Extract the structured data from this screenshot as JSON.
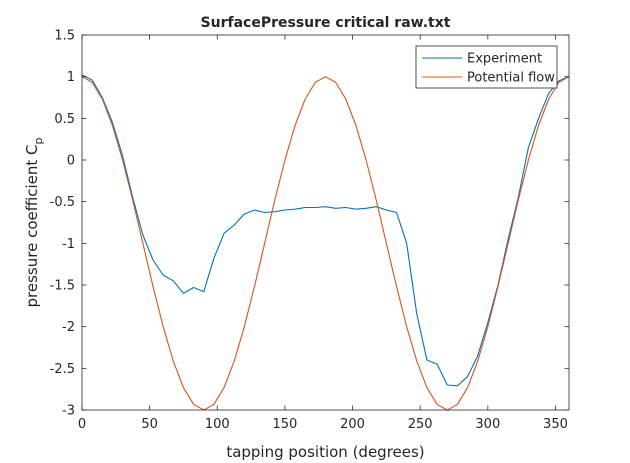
{
  "chart_data": {
    "type": "line",
    "title": "SurfacePressure critical raw.txt",
    "xlabel": "tapping position (degrees)",
    "ylabel": "pressure coefficient C",
    "ylabel_subscript": "p",
    "xlim": [
      0,
      360
    ],
    "ylim": [
      -3,
      1.5
    ],
    "xticks": [
      0,
      50,
      100,
      150,
      200,
      250,
      300,
      350
    ],
    "yticks": [
      1.5,
      1,
      0.5,
      0,
      -0.5,
      -1,
      -1.5,
      -2,
      -2.5,
      -3
    ],
    "grid": false,
    "legend_position": "top-right",
    "series": [
      {
        "name": "Experiment",
        "color": "#0072BD",
        "x": [
          0,
          7.5,
          15,
          22.5,
          30,
          37.5,
          45,
          52.5,
          60,
          67.5,
          75,
          82.5,
          90,
          97.5,
          105,
          112.5,
          120,
          127.5,
          135,
          142.5,
          150,
          157.5,
          165,
          172.5,
          180,
          187.5,
          195,
          202.5,
          210,
          217.5,
          225,
          232.5,
          240,
          247.5,
          255,
          262.5,
          270,
          277.5,
          285,
          292.5,
          300,
          307.5,
          315,
          322.5,
          330,
          337.5,
          345,
          352.5,
          360
        ],
        "y": [
          1.02,
          0.96,
          0.75,
          0.45,
          0.05,
          -0.45,
          -0.9,
          -1.2,
          -1.38,
          -1.45,
          -1.6,
          -1.53,
          -1.58,
          -1.18,
          -0.88,
          -0.78,
          -0.65,
          -0.6,
          -0.63,
          -0.62,
          -0.6,
          -0.59,
          -0.57,
          -0.57,
          -0.56,
          -0.58,
          -0.57,
          -0.59,
          -0.58,
          -0.56,
          -0.6,
          -0.63,
          -1.0,
          -1.85,
          -2.4,
          -2.45,
          -2.7,
          -2.71,
          -2.6,
          -2.35,
          -1.95,
          -1.5,
          -0.95,
          -0.45,
          0.15,
          0.5,
          0.8,
          0.95,
          1.0
        ]
      },
      {
        "name": "Potential flow",
        "color": "#D95319",
        "x": [
          0,
          7.5,
          15,
          22.5,
          30,
          37.5,
          45,
          52.5,
          60,
          67.5,
          75,
          82.5,
          90,
          97.5,
          105,
          112.5,
          120,
          127.5,
          135,
          142.5,
          150,
          157.5,
          165,
          172.5,
          180,
          187.5,
          195,
          202.5,
          210,
          217.5,
          225,
          232.5,
          240,
          247.5,
          255,
          262.5,
          270,
          277.5,
          285,
          292.5,
          300,
          307.5,
          315,
          322.5,
          330,
          337.5,
          345,
          352.5,
          360
        ],
        "y": [
          1.0,
          0.933,
          0.732,
          0.414,
          0.0,
          -0.482,
          -1.0,
          -1.518,
          -2.0,
          -2.414,
          -2.732,
          -2.933,
          -3.0,
          -2.933,
          -2.732,
          -2.414,
          -2.0,
          -1.518,
          -1.0,
          -0.482,
          0.0,
          0.414,
          0.732,
          0.933,
          1.0,
          0.933,
          0.732,
          0.414,
          0.0,
          -0.482,
          -1.0,
          -1.518,
          -2.0,
          -2.414,
          -2.732,
          -2.933,
          -3.0,
          -2.933,
          -2.732,
          -2.414,
          -2.0,
          -1.518,
          -1.0,
          -0.482,
          0.0,
          0.414,
          0.732,
          0.933,
          1.0
        ]
      }
    ]
  }
}
